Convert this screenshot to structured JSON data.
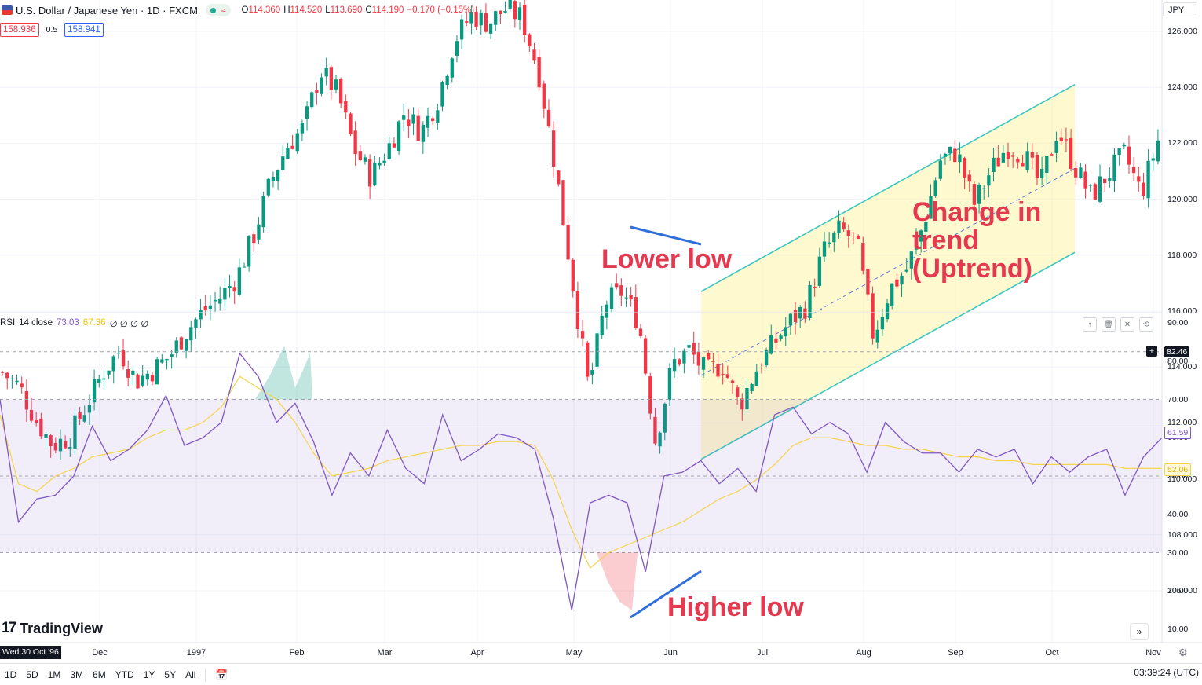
{
  "header": {
    "symbol_title": "U.S. Dollar / Japanese Yen · 1D · FXCM",
    "ohlc": {
      "o_label": "O",
      "o": "114.360",
      "h_label": "H",
      "h": "114.520",
      "l_label": "L",
      "l": "113.690",
      "c_label": "C",
      "c": "114.190",
      "change": "−0.170 (−0.15%)"
    },
    "bid": "158.936",
    "spread": "0.5",
    "ask": "158.941",
    "currency": "JPY"
  },
  "price_axis": {
    "labels": [
      "126.000",
      "124.000",
      "122.000",
      "120.000",
      "118.000",
      "116.000",
      "114.000",
      "112.000",
      "110.000",
      "108.000",
      "106.000"
    ]
  },
  "rsi": {
    "name": "RSI",
    "params": "14 close",
    "value": "73.03",
    "ma_value": "67.36",
    "extras": "∅ ∅ ∅ ∅",
    "axis_labels": [
      "90.00",
      "80.00",
      "70.00",
      "60.00",
      "50.00",
      "40.00",
      "30.00",
      "20.00",
      "10.00"
    ],
    "badge_high": "82.46",
    "badge_rsi": "61.59",
    "badge_ma": "52.06"
  },
  "annotations": {
    "lower_low": "Lower low",
    "change_line1": "Change in",
    "change_line2": "trend",
    "change_line3": "(Uptrend)",
    "higher_low": "Higher low"
  },
  "time_axis": {
    "current_date": "Wed 30 Oct '96",
    "labels": [
      "Dec",
      "1997",
      "Feb",
      "Mar",
      "Apr",
      "May",
      "Jun",
      "Jul",
      "Aug",
      "Sep",
      "Oct",
      "Nov"
    ]
  },
  "watermark": "TradingView",
  "bottom_bar": {
    "ranges": [
      "1D",
      "5D",
      "1M",
      "3M",
      "6M",
      "YTD",
      "1Y",
      "5Y",
      "All"
    ],
    "clock": "03:39:24 (UTC)"
  },
  "colors": {
    "up": "#089981",
    "down": "#f23645",
    "rsi_line": "#7e57c2",
    "rsi_ma": "#f5d44b",
    "channel": "#3cc7c0",
    "annot": "#e53950",
    "trend": "#2e6fdc"
  },
  "chart_data": [
    {
      "type": "candlestick",
      "title": "U.S. Dollar / Japanese Yen · 1D · FXCM",
      "ylim": [
        106,
        127
      ],
      "x": [
        "Nov",
        "Dec",
        "1997",
        "Feb",
        "Mar",
        "Apr",
        "May",
        "Jun",
        "Jul",
        "Aug",
        "Sep",
        "Oct",
        "Nov"
      ],
      "close_path": [
        113.8,
        113.3,
        112.1,
        111.2,
        111.5,
        112.6,
        113.8,
        114.6,
        113.5,
        113.9,
        114.4,
        115.3,
        116.0,
        116.5,
        117.2,
        118.7,
        120.6,
        121.9,
        122.6,
        124.6,
        123.8,
        121.8,
        120.8,
        121.8,
        123.1,
        122.4,
        123.6,
        125.7,
        126.6,
        126.3,
        126.8,
        126.5,
        124.6,
        121.2,
        117.2,
        113.2,
        116.3,
        116.7,
        115.6,
        111.3,
        114.1,
        114.6,
        113.8,
        114.1,
        112.6,
        113.9,
        114.8,
        115.6,
        116.2,
        118.1,
        118.9,
        118.5,
        115.1,
        116.8,
        117.5,
        119.1,
        121.4,
        121.7,
        119.8,
        121.0,
        121.9,
        121.6,
        120.5,
        122.5,
        121.2,
        120.1,
        120.9,
        121.6,
        120.2,
        122.1
      ]
    },
    {
      "type": "line",
      "title": "RSI 14 close",
      "ylim": [
        10,
        90
      ],
      "levels": [
        70,
        50,
        30
      ],
      "rsi_path": [
        70,
        38,
        44,
        45,
        50,
        63,
        54,
        57,
        62,
        71,
        58,
        60,
        64,
        82,
        76,
        64,
        69,
        59,
        45,
        56,
        50,
        62,
        52,
        48,
        66,
        54,
        57,
        61,
        60,
        57,
        39,
        15,
        43,
        45,
        43,
        25,
        50,
        51,
        54,
        48,
        52,
        46,
        66,
        68,
        61,
        64,
        61,
        51,
        64,
        59,
        56,
        56,
        51,
        57,
        55,
        57,
        48,
        55,
        51,
        55,
        57,
        45,
        55,
        60
      ],
      "ma_path": [
        66,
        48,
        46,
        50,
        52,
        55,
        56,
        57,
        60,
        62,
        62,
        64,
        68,
        76,
        73,
        70,
        64,
        56,
        50,
        51,
        52,
        54,
        55,
        56,
        57,
        58,
        58,
        59,
        59,
        58,
        49,
        36,
        26,
        30,
        32,
        34,
        36,
        38,
        41,
        44,
        46,
        49,
        53,
        58,
        60,
        60,
        59,
        58,
        58,
        57,
        57,
        56,
        55,
        55,
        54,
        54,
        53,
        53,
        53,
        53,
        53,
        52,
        52,
        52
      ]
    }
  ]
}
